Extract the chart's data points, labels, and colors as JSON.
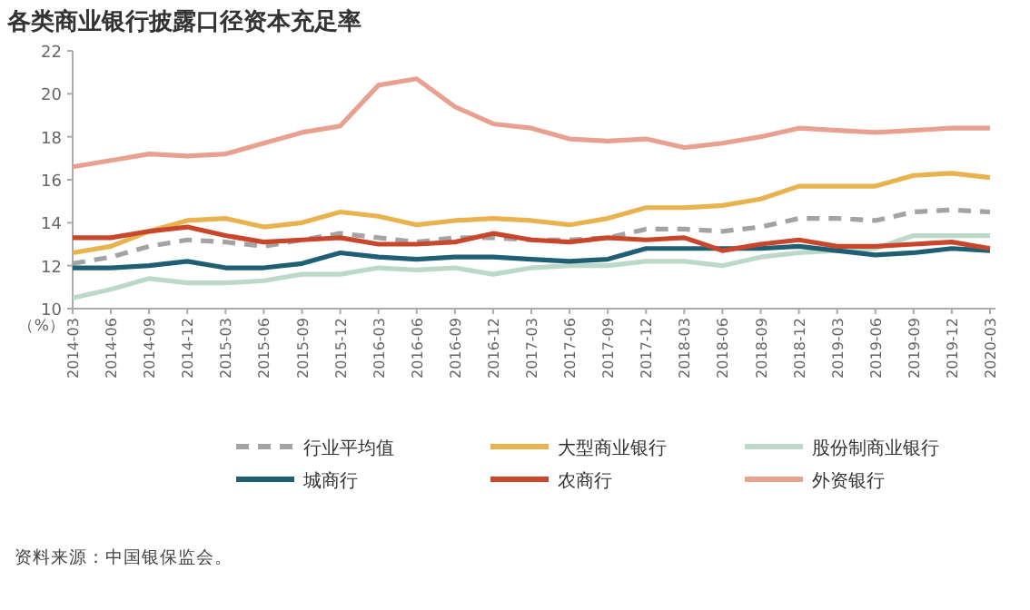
{
  "chart_data": {
    "type": "line",
    "title": "各类商业银行披露口径资本充足率",
    "ylabel": "（%）",
    "categories": [
      "2014-03",
      "2014-06",
      "2014-09",
      "2014-12",
      "2015-03",
      "2015-06",
      "2015-09",
      "2015-12",
      "2016-03",
      "2016-06",
      "2016-09",
      "2016-12",
      "2017-03",
      "2017-06",
      "2017-09",
      "2017-12",
      "2018-03",
      "2018-06",
      "2018-09",
      "2018-12",
      "2019-03",
      "2019-06",
      "2019-09",
      "2019-12",
      "2020-03"
    ],
    "ylim": [
      10,
      22
    ],
    "yticks": [
      10,
      12,
      14,
      16,
      18,
      20,
      22
    ],
    "grid": false,
    "legend": "bottom",
    "marker": "none",
    "series": [
      {
        "name": "行业平均值",
        "color": "#a3a3a3",
        "line_style": "dashed",
        "values": [
          12.1,
          12.4,
          12.9,
          13.2,
          13.1,
          12.9,
          13.2,
          13.5,
          13.3,
          13.1,
          13.3,
          13.3,
          13.2,
          13.2,
          13.3,
          13.7,
          13.7,
          13.6,
          13.8,
          14.2,
          14.2,
          14.1,
          14.5,
          14.6,
          14.5
        ]
      },
      {
        "name": "大型商业银行",
        "color": "#e8b34f",
        "line_style": "solid",
        "values": [
          12.6,
          12.9,
          13.6,
          14.1,
          14.2,
          13.8,
          14.0,
          14.5,
          14.3,
          13.9,
          14.1,
          14.2,
          14.1,
          13.9,
          14.2,
          14.7,
          14.7,
          14.8,
          15.1,
          15.7,
          15.7,
          15.7,
          16.2,
          16.3,
          16.1
        ]
      },
      {
        "name": "股份制商业银行",
        "color": "#bcd8c8",
        "line_style": "solid",
        "values": [
          10.5,
          10.9,
          11.4,
          11.2,
          11.2,
          11.3,
          11.6,
          11.6,
          11.9,
          11.8,
          11.9,
          11.6,
          11.9,
          12.0,
          12.0,
          12.2,
          12.2,
          12.0,
          12.4,
          12.6,
          12.7,
          12.8,
          13.4,
          13.4,
          13.4
        ]
      },
      {
        "name": "城商行",
        "color": "#1f5f73",
        "line_style": "solid",
        "values": [
          11.9,
          11.9,
          12.0,
          12.2,
          11.9,
          11.9,
          12.1,
          12.6,
          12.4,
          12.3,
          12.4,
          12.4,
          12.3,
          12.2,
          12.3,
          12.8,
          12.8,
          12.8,
          12.8,
          12.9,
          12.7,
          12.5,
          12.6,
          12.8,
          12.7
        ]
      },
      {
        "name": "农商行",
        "color": "#c8462a",
        "line_style": "solid",
        "values": [
          13.3,
          13.3,
          13.6,
          13.8,
          13.4,
          13.1,
          13.2,
          13.3,
          13.0,
          13.0,
          13.1,
          13.5,
          13.2,
          13.1,
          13.3,
          13.2,
          13.3,
          12.7,
          13.0,
          13.2,
          12.9,
          12.9,
          13.0,
          13.1,
          12.8
        ]
      },
      {
        "name": "外资银行",
        "color": "#e8a090",
        "line_style": "solid",
        "values": [
          16.6,
          16.9,
          17.2,
          17.1,
          17.2,
          17.7,
          18.2,
          18.5,
          20.4,
          20.7,
          19.4,
          18.6,
          18.4,
          17.9,
          17.8,
          17.9,
          17.5,
          17.7,
          18.0,
          18.4,
          18.3,
          18.2,
          18.3,
          18.4,
          18.4
        ]
      }
    ],
    "annotations": [
      "资料来源：中国银保监会。"
    ]
  }
}
